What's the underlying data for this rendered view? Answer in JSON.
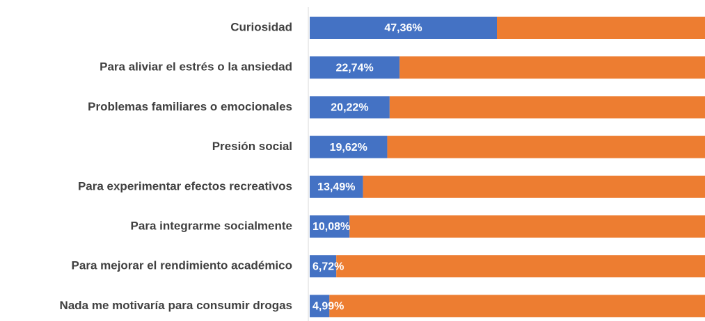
{
  "chart_data": {
    "type": "stacked-bar-horizontal",
    "categories": [
      "Curiosidad",
      "Para aliviar el estrés o la ansiedad",
      "Problemas familiares o emocionales",
      "Presión social",
      "Para experimentar efectos recreativos",
      "Para integrarme socialmente",
      "Para mejorar el rendimiento académico",
      "Nada me motivaría para consumir drogas"
    ],
    "series": [
      {
        "color": "#4472c4",
        "values": [
          47.36,
          22.74,
          20.22,
          19.62,
          13.49,
          10.08,
          6.72,
          4.99
        ],
        "value_labels": [
          "47,36%",
          "22,74%",
          "20,22%",
          "19,62%",
          "13,49%",
          "10,08%",
          "6,72%",
          "4,99%"
        ]
      },
      {
        "color": "#ed7d31",
        "values": [
          52.64,
          77.26,
          79.78,
          80.38,
          86.51,
          89.92,
          93.28,
          95.01
        ]
      }
    ],
    "xlim": [
      0,
      100
    ]
  }
}
